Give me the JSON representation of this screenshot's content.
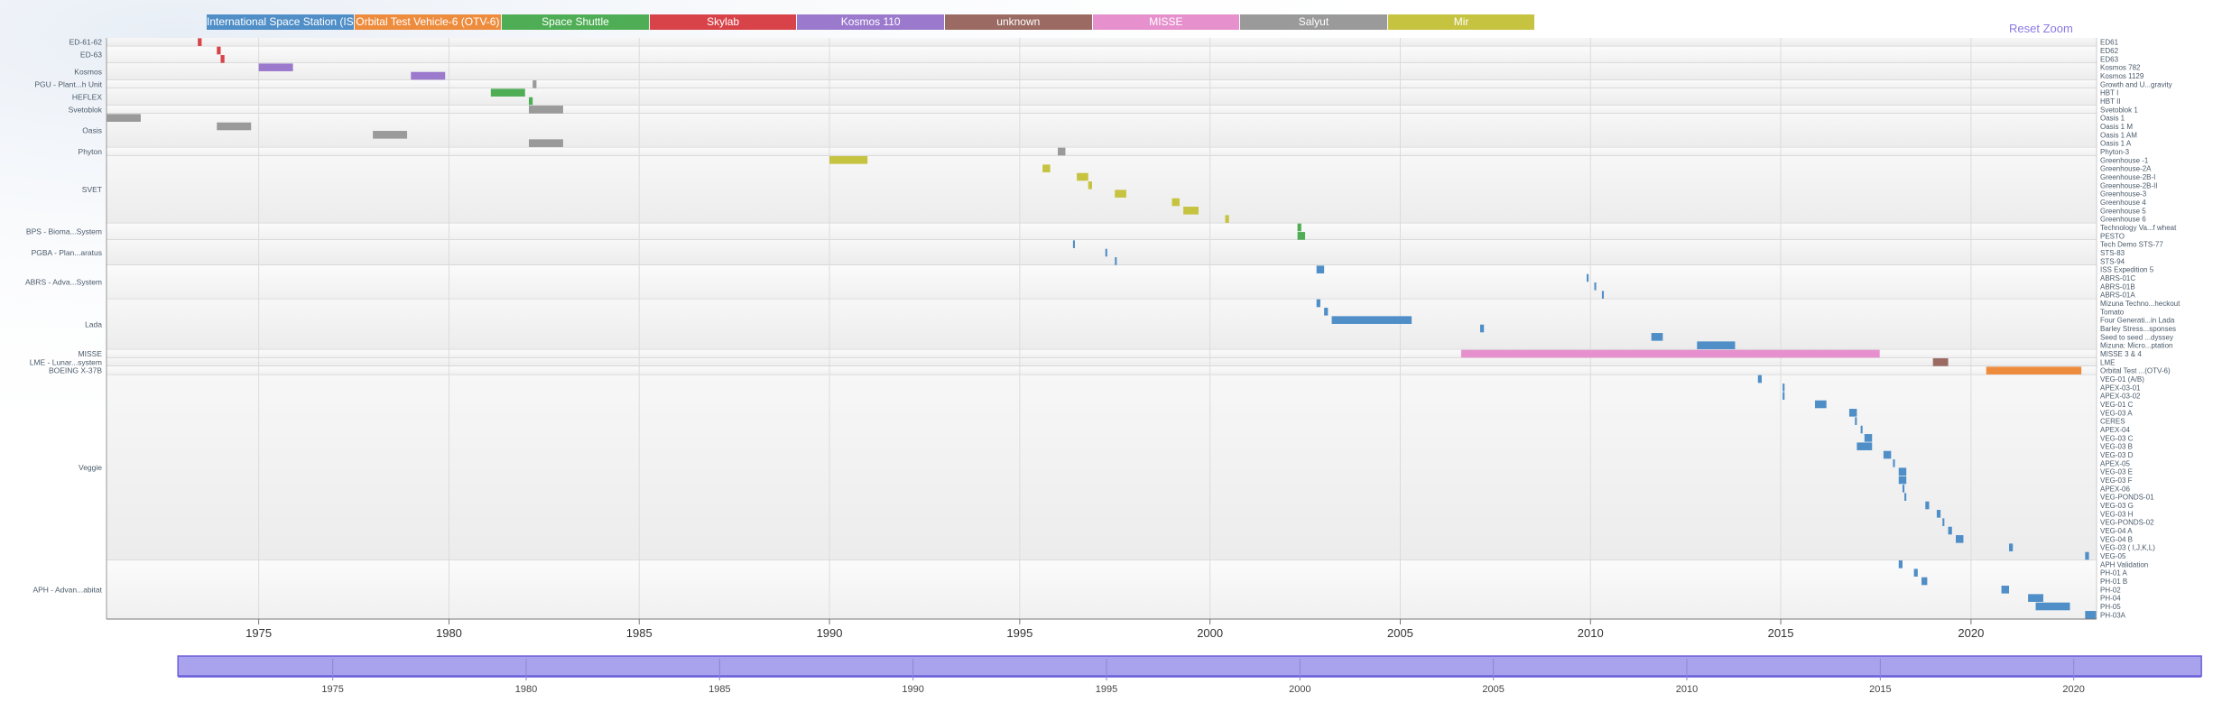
{
  "reset_label": "Reset Zoom",
  "chart_data": {
    "type": "timeline",
    "legend": [
      {
        "name": "International Space Station (ISS)",
        "color": "#4f8ec7"
      },
      {
        "name": "Orbital Test Vehicle-6 (OTV-6)",
        "color": "#ee8c3e"
      },
      {
        "name": "Space Shuttle",
        "color": "#4fae55"
      },
      {
        "name": "Skylab",
        "color": "#d84349"
      },
      {
        "name": "Kosmos 110",
        "color": "#9b79cd"
      },
      {
        "name": "unknown",
        "color": "#9b6a62"
      },
      {
        "name": "MISSE",
        "color": "#e691cd"
      },
      {
        "name": "Salyut",
        "color": "#9a9a9a"
      },
      {
        "name": "Mir",
        "color": "#c6c341"
      }
    ],
    "xlim": [
      1971.0,
      2023.3
    ],
    "x_ticks": [
      1975,
      1980,
      1985,
      1990,
      1995,
      2000,
      2005,
      2010,
      2015,
      2020
    ],
    "navigator": {
      "range": [
        1966.4,
        2023.6
      ],
      "selection": [
        1971.0,
        2023.3
      ],
      "ticks": [
        1975,
        1980,
        1985,
        1990,
        1995,
        2000,
        2005,
        2010,
        2015,
        2020
      ]
    },
    "groups": [
      {
        "label": "ED-61-62",
        "rows": [
          {
            "label": "ED61",
            "bars": [
              [
                1973.4,
                1973.5,
                3
              ]
            ]
          }
        ]
      },
      {
        "label": "ED-63",
        "rows": [
          {
            "label": "ED62",
            "bars": [
              [
                1973.9,
                1974.0,
                3
              ]
            ]
          },
          {
            "label": "ED63",
            "bars": [
              [
                1974.0,
                1974.1,
                3
              ]
            ]
          }
        ]
      },
      {
        "label": "Kosmos",
        "rows": [
          {
            "label": "Kosmos 782",
            "bars": [
              [
                1975.0,
                1975.9,
                4
              ]
            ]
          },
          {
            "label": "Kosmos 1129",
            "bars": [
              [
                1979.0,
                1979.9,
                4
              ]
            ]
          }
        ]
      },
      {
        "label": "PGU - Plant...h Unit",
        "rows": [
          {
            "label": "Growth and U...gravity",
            "bars": [
              [
                1982.2,
                1982.3,
                7
              ]
            ]
          }
        ]
      },
      {
        "label": "HEFLEX",
        "rows": [
          {
            "label": "HBT I",
            "bars": [
              [
                1981.1,
                1982.0,
                2
              ]
            ]
          },
          {
            "label": "HBT II",
            "bars": [
              [
                1982.1,
                1982.2,
                2
              ]
            ]
          }
        ]
      },
      {
        "label": "Svetoblok",
        "rows": [
          {
            "label": "Svetoblok 1",
            "bars": [
              [
                1982.1,
                1983.0,
                7
              ]
            ]
          }
        ]
      },
      {
        "label": "Oasis",
        "rows": [
          {
            "label": "Oasis 1",
            "bars": [
              [
                1971.0,
                1971.9,
                7
              ]
            ]
          },
          {
            "label": "Oasis 1 M",
            "bars": [
              [
                1973.9,
                1974.8,
                7
              ]
            ]
          },
          {
            "label": "Oasis 1 AM",
            "bars": [
              [
                1978.0,
                1978.9,
                7
              ]
            ]
          },
          {
            "label": "Oasis 1 A",
            "bars": [
              [
                1982.1,
                1983.0,
                7
              ]
            ]
          }
        ]
      },
      {
        "label": "Phyton",
        "rows": [
          {
            "label": "Phyton-3",
            "bars": [
              [
                1996.0,
                1996.2,
                7
              ]
            ]
          }
        ]
      },
      {
        "label": "SVET",
        "rows": [
          {
            "label": "Greenhouse -1",
            "bars": [
              [
                1990.0,
                1991.0,
                8
              ]
            ]
          },
          {
            "label": "Greenhouse-2A",
            "bars": [
              [
                1995.6,
                1995.8,
                8
              ]
            ]
          },
          {
            "label": "Greenhouse-2B-I",
            "bars": [
              [
                1996.5,
                1996.8,
                8
              ]
            ]
          },
          {
            "label": "Greenhouse-2B-II",
            "bars": [
              [
                1996.8,
                1996.9,
                8
              ]
            ]
          },
          {
            "label": "Greenhouse-3",
            "bars": [
              [
                1997.5,
                1997.8,
                8
              ]
            ]
          },
          {
            "label": "Greenhouse 4",
            "bars": [
              [
                1999.0,
                1999.2,
                8
              ]
            ]
          },
          {
            "label": "Greenhouse 5",
            "bars": [
              [
                1999.3,
                1999.7,
                8
              ]
            ]
          },
          {
            "label": "Greenhouse 6",
            "bars": [
              [
                2000.4,
                2000.5,
                8
              ]
            ]
          }
        ]
      },
      {
        "label": "BPS - Bioma...System",
        "rows": [
          {
            "label": "Technology Va...f wheat",
            "bars": [
              [
                2002.3,
                2002.4,
                2
              ]
            ]
          },
          {
            "label": "PESTO",
            "bars": [
              [
                2002.3,
                2002.5,
                2
              ]
            ]
          }
        ]
      },
      {
        "label": "PGBA - Plan...aratus",
        "rows": [
          {
            "label": "Tech Demo STS-77",
            "bars": [
              [
                1996.4,
                1996.45,
                0
              ]
            ]
          },
          {
            "label": "STS-83",
            "bars": [
              [
                1997.25,
                1997.3,
                0
              ]
            ]
          },
          {
            "label": "STS-94",
            "bars": [
              [
                1997.5,
                1997.55,
                0
              ]
            ]
          }
        ]
      },
      {
        "label": "ABRS - Adva...System",
        "rows": [
          {
            "label": "ISS Expedition 5",
            "bars": [
              [
                2002.8,
                2003.0,
                0
              ]
            ]
          },
          {
            "label": "ABRS-01C",
            "bars": [
              [
                2009.9,
                2009.95,
                0
              ]
            ]
          },
          {
            "label": "ABRS-01B",
            "bars": [
              [
                2010.1,
                2010.15,
                0
              ]
            ]
          },
          {
            "label": "ABRS-01A",
            "bars": [
              [
                2010.3,
                2010.35,
                0
              ]
            ]
          }
        ]
      },
      {
        "label": "Lada",
        "rows": [
          {
            "label": "Mizuna Techno...heckout",
            "bars": [
              [
                2002.8,
                2002.9,
                0
              ]
            ]
          },
          {
            "label": "Tomato",
            "bars": [
              [
                2003.0,
                2003.1,
                0
              ]
            ]
          },
          {
            "label": "Four Generati...in Lada",
            "bars": [
              [
                2003.2,
                2005.3,
                0
              ]
            ]
          },
          {
            "label": "Barley Stress...sponses",
            "bars": [
              [
                2007.1,
                2007.2,
                0
              ]
            ]
          },
          {
            "label": "Seed to seed ...dyssey",
            "bars": [
              [
                2011.6,
                2011.9,
                0
              ]
            ]
          },
          {
            "label": "Mizuna: Micro...ptation",
            "bars": [
              [
                2012.8,
                2013.8,
                0
              ]
            ]
          }
        ]
      },
      {
        "label": "MISSE",
        "rows": [
          {
            "label": "MISSE 3 & 4",
            "bars": [
              [
                2006.6,
                2017.6,
                6
              ]
            ]
          }
        ]
      },
      {
        "label": "LME - Lunar...system",
        "rows": [
          {
            "label": "LME",
            "bars": [
              [
                2019.0,
                2019.4,
                5
              ]
            ]
          }
        ]
      },
      {
        "label": "BOEING X-37B",
        "rows": [
          {
            "label": "Orbital Test ...(OTV-6)",
            "bars": [
              [
                2020.4,
                2022.9,
                1
              ]
            ]
          }
        ]
      },
      {
        "label": "Veggie",
        "rows": [
          {
            "label": "VEG-01 (A/B)",
            "bars": [
              [
                2014.4,
                2014.5,
                0
              ]
            ]
          },
          {
            "label": "APEX-03-01",
            "bars": [
              [
                2015.05,
                2015.1,
                0
              ]
            ]
          },
          {
            "label": "APEX-03-02",
            "bars": [
              [
                2015.05,
                2015.1,
                0
              ]
            ]
          },
          {
            "label": "VEG-01 C",
            "bars": [
              [
                2015.9,
                2016.2,
                0
              ]
            ]
          },
          {
            "label": "VEG-03 A",
            "bars": [
              [
                2016.8,
                2017.0,
                0
              ]
            ]
          },
          {
            "label": "CERES",
            "bars": [
              [
                2016.95,
                2017.0,
                0
              ]
            ]
          },
          {
            "label": "APEX-04",
            "bars": [
              [
                2017.1,
                2017.15,
                0
              ]
            ]
          },
          {
            "label": "VEG-03 C",
            "bars": [
              [
                2017.2,
                2017.4,
                0
              ]
            ]
          },
          {
            "label": "VEG-03 B",
            "bars": [
              [
                2017.0,
                2017.4,
                0
              ]
            ]
          },
          {
            "label": "VEG-03 D",
            "bars": [
              [
                2017.7,
                2017.9,
                0
              ]
            ]
          },
          {
            "label": "APEX-05",
            "bars": [
              [
                2017.95,
                2018.0,
                0
              ]
            ]
          },
          {
            "label": "VEG-03 E",
            "bars": [
              [
                2018.1,
                2018.3,
                0
              ]
            ]
          },
          {
            "label": "VEG-03 F",
            "bars": [
              [
                2018.1,
                2018.3,
                0
              ]
            ]
          },
          {
            "label": "APEX-06",
            "bars": [
              [
                2018.2,
                2018.25,
                0
              ]
            ]
          },
          {
            "label": "VEG-PONDS-01",
            "bars": [
              [
                2018.25,
                2018.3,
                0
              ]
            ]
          },
          {
            "label": "VEG-03 G",
            "bars": [
              [
                2018.8,
                2018.9,
                0
              ]
            ]
          },
          {
            "label": "VEG-03 H",
            "bars": [
              [
                2019.1,
                2019.2,
                0
              ]
            ]
          },
          {
            "label": "VEG-PONDS-02",
            "bars": [
              [
                2019.25,
                2019.3,
                0
              ]
            ]
          },
          {
            "label": "VEG-04 A",
            "bars": [
              [
                2019.4,
                2019.5,
                0
              ]
            ]
          },
          {
            "label": "VEG-04 B",
            "bars": [
              [
                2019.6,
                2019.8,
                0
              ]
            ]
          },
          {
            "label": "VEG-03 ( I,J,K,L)",
            "bars": [
              [
                2021.0,
                2021.1,
                0
              ]
            ]
          },
          {
            "label": "VEG-05",
            "bars": [
              [
                2023.0,
                2023.1,
                0
              ]
            ]
          }
        ]
      },
      {
        "label": "APH - Advan...abitat",
        "rows": [
          {
            "label": "APH Validation",
            "bars": [
              [
                2018.1,
                2018.2,
                0
              ]
            ]
          },
          {
            "label": "PH-01 A",
            "bars": [
              [
                2018.5,
                2018.6,
                0
              ]
            ]
          },
          {
            "label": "PH-01 B",
            "bars": [
              [
                2018.7,
                2018.85,
                0
              ]
            ]
          },
          {
            "label": "PH-02",
            "bars": [
              [
                2020.8,
                2021.0,
                0
              ]
            ]
          },
          {
            "label": "PH-04",
            "bars": [
              [
                2021.5,
                2021.9,
                0
              ]
            ]
          },
          {
            "label": "PH-05",
            "bars": [
              [
                2021.7,
                2022.6,
                0
              ]
            ]
          },
          {
            "label": "PH-03A",
            "bars": [
              [
                2023.0,
                2023.3,
                0
              ]
            ]
          }
        ]
      }
    ]
  }
}
